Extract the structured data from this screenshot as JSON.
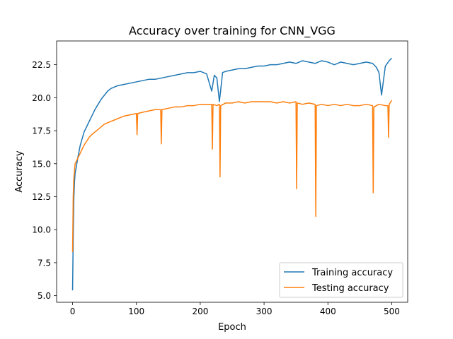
{
  "chart_data": {
    "type": "line",
    "title": "Accuracy over training for CNN_VGG",
    "xlabel": "Epoch",
    "ylabel": "Accuracy",
    "xlim": [
      -25,
      525
    ],
    "ylim": [
      4.5,
      24.3
    ],
    "xticks": [
      0,
      100,
      200,
      300,
      400,
      500
    ],
    "yticks": [
      5.0,
      7.5,
      10.0,
      12.5,
      15.0,
      17.5,
      20.0,
      22.5
    ],
    "ytick_labels": [
      "5.0",
      "7.5",
      "10.0",
      "12.5",
      "15.0",
      "17.5",
      "20.0",
      "22.5"
    ],
    "grid": false,
    "legend_position": "lower-right",
    "series": [
      {
        "name": "Training accuracy",
        "color": "#1f77b4",
        "x": [
          0,
          1,
          2,
          3,
          4,
          6,
          8,
          10,
          12,
          15,
          18,
          22,
          26,
          30,
          35,
          40,
          45,
          50,
          55,
          60,
          70,
          80,
          90,
          100,
          110,
          120,
          130,
          140,
          150,
          160,
          170,
          180,
          190,
          200,
          210,
          218,
          222,
          226,
          230,
          235,
          240,
          250,
          260,
          270,
          280,
          290,
          300,
          310,
          320,
          330,
          340,
          350,
          360,
          370,
          380,
          390,
          400,
          410,
          420,
          430,
          440,
          450,
          460,
          470,
          476,
          480,
          484,
          490,
          496,
          500
        ],
        "y": [
          5.4,
          9.5,
          12.4,
          13.6,
          14.3,
          14.8,
          15.4,
          15.9,
          16.4,
          16.9,
          17.4,
          17.8,
          18.2,
          18.6,
          19.1,
          19.5,
          19.9,
          20.2,
          20.5,
          20.7,
          20.9,
          21.0,
          21.1,
          21.2,
          21.3,
          21.4,
          21.4,
          21.5,
          21.6,
          21.7,
          21.8,
          21.9,
          21.9,
          22.0,
          21.8,
          20.5,
          21.7,
          21.5,
          19.7,
          21.9,
          22.0,
          22.1,
          22.2,
          22.2,
          22.3,
          22.4,
          22.4,
          22.5,
          22.5,
          22.6,
          22.7,
          22.6,
          22.8,
          22.7,
          22.6,
          22.8,
          22.7,
          22.5,
          22.7,
          22.6,
          22.5,
          22.6,
          22.7,
          22.6,
          22.3,
          21.9,
          20.2,
          22.4,
          22.8,
          23.0
        ]
      },
      {
        "name": "Testing accuracy",
        "color": "#ff7f0e",
        "x": [
          0,
          1,
          2,
          3,
          4,
          6,
          8,
          10,
          12,
          15,
          18,
          22,
          26,
          30,
          35,
          40,
          45,
          50,
          55,
          60,
          70,
          80,
          90,
          100,
          101,
          102,
          110,
          120,
          130,
          138,
          139,
          140,
          150,
          160,
          170,
          180,
          190,
          200,
          210,
          218,
          219,
          220,
          226,
          230,
          231,
          232,
          240,
          250,
          260,
          270,
          280,
          290,
          300,
          310,
          320,
          330,
          340,
          350,
          351,
          352,
          360,
          370,
          380,
          381,
          382,
          390,
          400,
          410,
          420,
          430,
          440,
          450,
          460,
          470,
          471,
          472,
          480,
          490,
          494,
          495,
          496,
          500
        ],
        "y": [
          8.3,
          12.5,
          13.9,
          14.5,
          15.0,
          15.2,
          15.4,
          15.6,
          15.8,
          16.1,
          16.4,
          16.7,
          17.0,
          17.2,
          17.4,
          17.6,
          17.8,
          18.0,
          18.1,
          18.2,
          18.4,
          18.6,
          18.7,
          18.8,
          17.2,
          18.8,
          18.9,
          19.0,
          19.1,
          19.1,
          16.5,
          19.1,
          19.2,
          19.3,
          19.3,
          19.4,
          19.4,
          19.5,
          19.5,
          19.5,
          16.1,
          19.5,
          19.4,
          19.5,
          14.0,
          19.4,
          19.6,
          19.6,
          19.7,
          19.6,
          19.7,
          19.7,
          19.7,
          19.7,
          19.6,
          19.7,
          19.6,
          19.7,
          13.1,
          19.6,
          19.5,
          19.6,
          19.5,
          11.0,
          19.4,
          19.5,
          19.4,
          19.5,
          19.4,
          19.5,
          19.4,
          19.4,
          19.5,
          19.4,
          12.8,
          19.3,
          19.5,
          19.4,
          19.4,
          17.0,
          19.5,
          19.8
        ]
      }
    ]
  }
}
